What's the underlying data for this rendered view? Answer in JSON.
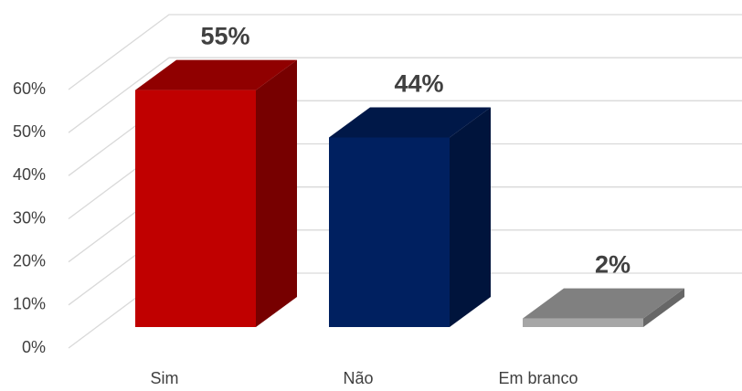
{
  "chart_data": {
    "type": "bar3d",
    "categories": [
      "Sim",
      "Não",
      "Em branco"
    ],
    "values": [
      55,
      44,
      2
    ],
    "value_labels": [
      "55%",
      "44%",
      "2%"
    ],
    "colors": [
      "#c00000",
      "#002060",
      "#a6a6a6"
    ],
    "ylim": [
      0,
      60
    ],
    "yticks": [
      {
        "value": 0,
        "label": "0%"
      },
      {
        "value": 10,
        "label": "10%"
      },
      {
        "value": 20,
        "label": "20%"
      },
      {
        "value": 30,
        "label": "30%"
      },
      {
        "value": 40,
        "label": "40%"
      },
      {
        "value": 50,
        "label": "50%"
      },
      {
        "value": 60,
        "label": "60%"
      }
    ],
    "grid": true
  }
}
